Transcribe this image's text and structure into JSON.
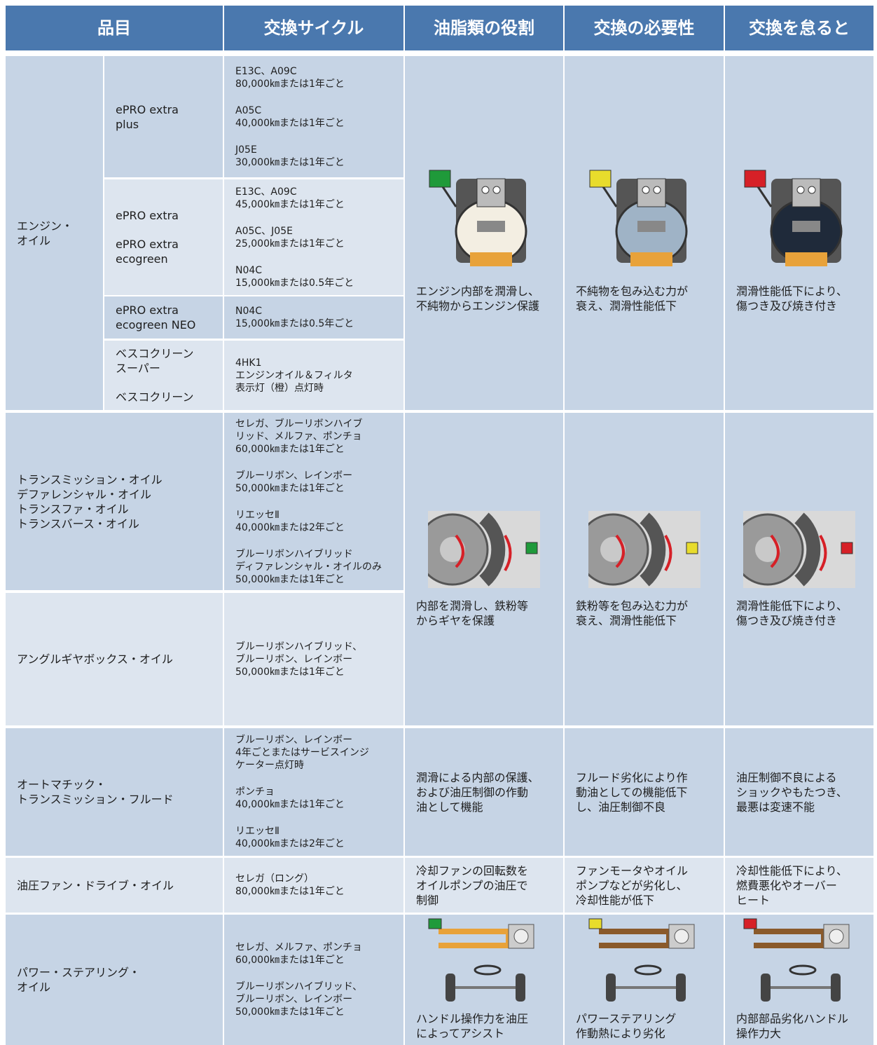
{
  "table": {
    "header": [
      "品目",
      "交換サイクル",
      "油脂類の役割",
      "交換の必要性",
      "交換を怠ると"
    ],
    "groups": [
      {
        "item": [
          "エンジン・",
          "オイル"
        ],
        "subrows": [
          {
            "product": [
              [
                "ePRO extra",
                "plus"
              ]
            ],
            "cycle": [
              [
                "E13C、A09C",
                "80,000㎞または1年ごと"
              ],
              [
                "A05C",
                "40,000㎞または1年ごと"
              ],
              [
                "J05E",
                "30,000㎞または1年ごと"
              ]
            ]
          },
          {
            "product": [
              [
                "ePRO extra"
              ],
              [
                "ePRO extra",
                "ecogreen"
              ]
            ],
            "cycle": [
              [
                "E13C、A09C",
                "45,000㎞または1年ごと"
              ],
              [
                "A05C、J05E",
                "25,000㎞または1年ごと"
              ],
              [
                "N04C",
                "15,000㎞または0.5年ごと"
              ]
            ]
          },
          {
            "product": [
              [
                "ePRO extra",
                "ecogreen NEO"
              ]
            ],
            "cycle": [
              [
                "N04C",
                "15,000㎞または0.5年ごと"
              ]
            ]
          },
          {
            "product": [
              [
                "ベスコクリーン",
                "スーパー"
              ],
              [
                "ベスコクリーン"
              ]
            ],
            "cycle": [
              [
                "4HK1",
                "エンジンオイル＆フィルタ",
                "表示灯（橙）点灯時"
              ]
            ]
          }
        ],
        "role": [
          "エンジン内部を潤滑し、",
          "不純物からエンジン保護"
        ],
        "necessity": [
          "不純物を包み込む力が",
          "衰え、潤滑性能低下"
        ],
        "neglect": [
          "潤滑性能低下により、",
          "傷つき及び焼き付き"
        ]
      },
      {
        "subrows": [
          {
            "item": [
              "トランスミッション・オイル",
              "デファレンシャル・オイル",
              "トランスファ・オイル",
              "トランスバース・オイル"
            ],
            "cycle": [
              [
                "セレガ、ブルーリボンハイブ",
                "リッド、メルファ、ポンチョ",
                "60,000㎞または1年ごと"
              ],
              [
                "ブルーリボン、レインボー",
                "50,000㎞または1年ごと"
              ],
              [
                "リエッセⅡ",
                "40,000㎞または2年ごと"
              ],
              [
                "ブルーリボンハイブリッド",
                "ディファレンシャル・オイルのみ",
                "50,000㎞または1年ごと"
              ]
            ]
          },
          {
            "item": [
              "アングルギヤボックス・オイル"
            ],
            "cycle": [
              [
                "ブルーリボンハイブリッド、",
                "ブルーリボン、レインボー",
                "50,000㎞または1年ごと"
              ]
            ]
          }
        ],
        "role": [
          "内部を潤滑し、鉄粉等",
          "からギヤを保護"
        ],
        "necessity": [
          "鉄粉等を包み込む力が",
          "衰え、潤滑性能低下"
        ],
        "neglect": [
          "潤滑性能低下により、",
          "傷つき及び焼き付き"
        ]
      },
      {
        "item": [
          "オートマチック・",
          "トランスミッション・フルード"
        ],
        "cycle": [
          [
            "ブルーリボン、レインボー",
            "4年ごとまたはサービスインジ",
            "ケーター点灯時"
          ],
          [
            "ポンチョ",
            "40,000㎞または1年ごと"
          ],
          [
            "リエッセⅡ",
            "40,000㎞または2年ごと"
          ]
        ],
        "role": [
          "潤滑による内部の保護、",
          "および油圧制御の作動",
          "油として機能"
        ],
        "necessity": [
          "フルード劣化により作",
          "動油としての機能低下",
          "し、油圧制御不良"
        ],
        "neglect": [
          "油圧制御不良による",
          "ショックやもたつき、",
          "最悪は変速不能"
        ]
      },
      {
        "item": [
          "油圧ファン・ドライブ・オイル"
        ],
        "cycle": [
          [
            "セレガ（ロング）",
            "80,000㎞または1年ごと"
          ]
        ],
        "role": [
          "冷却ファンの回転数を",
          "オイルポンプの油圧で",
          "制御"
        ],
        "necessity": [
          "ファンモータやオイル",
          "ポンプなどが劣化し、",
          "冷却性能が低下"
        ],
        "neglect": [
          "冷却性能低下により、",
          "燃費悪化やオーバー",
          "ヒート"
        ]
      },
      {
        "item": [
          "パワー・ステアリング・",
          "オイル"
        ],
        "cycle": [
          [
            "セレガ、メルファ、ポンチョ",
            "60,000㎞または1年ごと"
          ],
          [
            "ブルーリボンハイブリッド、",
            "ブルーリボン、レインボー",
            "50,000㎞または1年ごと"
          ]
        ],
        "role": [
          "ハンドル操作力を油圧",
          "によってアシスト"
        ],
        "necessity": [
          "パワーステアリング",
          "作動熱により劣化"
        ],
        "neglect": [
          "内部部品劣化ハンドル",
          "操作力大"
        ]
      }
    ]
  }
}
